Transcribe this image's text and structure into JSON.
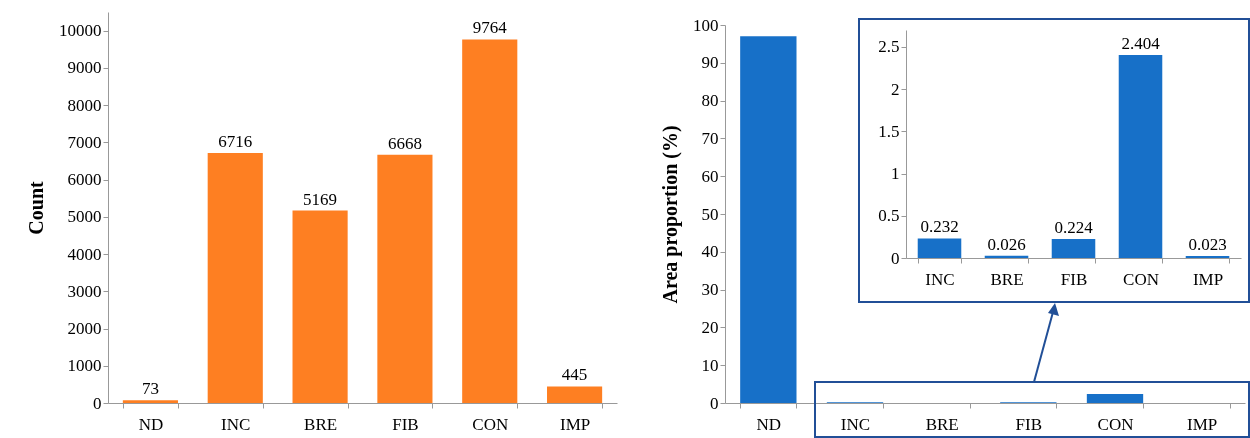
{
  "chart_data": [
    {
      "type": "bar",
      "ylabel": "Count",
      "categories": [
        "ND",
        "INC",
        "BRE",
        "FIB",
        "CON",
        "IMP"
      ],
      "values": [
        73,
        6716,
        5169,
        6668,
        9764,
        445
      ],
      "color": "#fe7f22",
      "ylim": [
        0,
        10500
      ],
      "yticks": [
        0,
        1000,
        2000,
        3000,
        4000,
        5000,
        6000,
        7000,
        8000,
        9000,
        10000
      ],
      "data_labels": true,
      "grid": false
    },
    {
      "type": "bar",
      "ylabel": "Area proportion (%)",
      "categories": [
        "ND",
        "INC",
        "BRE",
        "FIB",
        "CON",
        "IMP"
      ],
      "values": [
        97,
        0.2,
        0,
        0.2,
        2.4,
        0
      ],
      "color": "#1770c8",
      "ylim": [
        0,
        100
      ],
      "yticks": [
        0,
        10,
        20,
        30,
        40,
        50,
        60,
        70,
        80,
        90,
        100
      ],
      "grid": false
    },
    {
      "type": "bar",
      "categories": [
        "INC",
        "BRE",
        "FIB",
        "CON",
        "IMP"
      ],
      "values": [
        0.232,
        0.026,
        0.224,
        2.404,
        0.023
      ],
      "color": "#1770c8",
      "ylim": [
        0,
        2.7
      ],
      "yticks": [
        0,
        0.5,
        1,
        1.5,
        2,
        2.5
      ],
      "data_labels": true,
      "grid": false
    }
  ]
}
